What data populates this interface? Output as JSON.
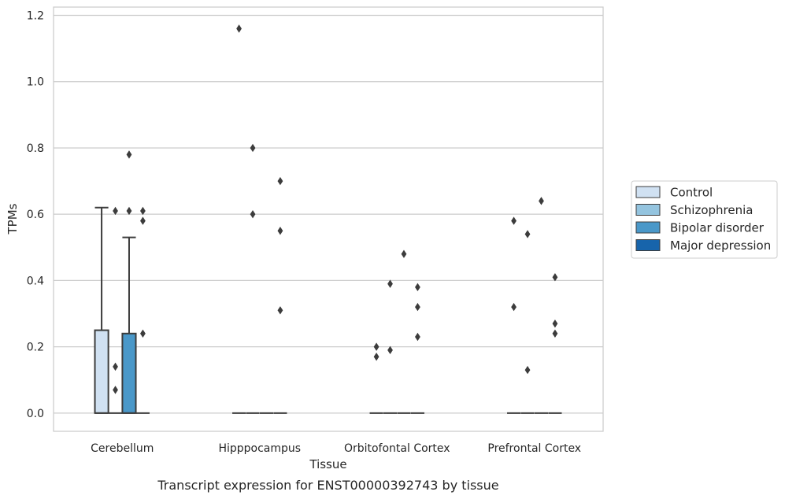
{
  "chart_data": {
    "type": "box",
    "title": "",
    "caption": "Transcript expression for ENST00000392743 by tissue",
    "xlabel": "Tissue",
    "ylabel": "TPMs",
    "ylim": [
      -0.055,
      1.225
    ],
    "yticks": [
      0.0,
      0.2,
      0.4,
      0.6,
      0.8,
      1.0,
      1.2
    ],
    "ytick_labels": [
      "0.0",
      "0.2",
      "0.4",
      "0.6",
      "0.8",
      "1.0",
      "1.2"
    ],
    "grid": "horizontal",
    "legend_position": "right",
    "categories": [
      "Cerebellum",
      "Hipppocampus",
      "Orbitofontal Cortex",
      "Prefrontal Cortex"
    ],
    "series": [
      {
        "name": "Control",
        "color": "#d0e1f2",
        "boxes": [
          {
            "q1": 0.0,
            "median": 0.0,
            "q3": 0.25,
            "whisker_low": 0.0,
            "whisker_high": 0.62,
            "outliers": []
          },
          {
            "q1": 0.0,
            "median": 0.0,
            "q3": 0.0,
            "whisker_low": 0.0,
            "whisker_high": 0.0,
            "outliers": [
              1.16
            ]
          },
          {
            "q1": 0.0,
            "median": 0.0,
            "q3": 0.0,
            "whisker_low": 0.0,
            "whisker_high": 0.0,
            "outliers": [
              0.2,
              0.17
            ]
          },
          {
            "q1": 0.0,
            "median": 0.0,
            "q3": 0.0,
            "whisker_low": 0.0,
            "whisker_high": 0.0,
            "outliers": [
              0.58,
              0.32
            ]
          }
        ]
      },
      {
        "name": "Schizophrenia",
        "color": "#94c4df",
        "boxes": [
          {
            "q1": 0.0,
            "median": 0.0,
            "q3": 0.0,
            "whisker_low": 0.0,
            "whisker_high": 0.0,
            "outliers": [
              0.61,
              0.14,
              0.07
            ]
          },
          {
            "q1": 0.0,
            "median": 0.0,
            "q3": 0.0,
            "whisker_low": 0.0,
            "whisker_high": 0.0,
            "outliers": [
              0.8,
              0.6
            ]
          },
          {
            "q1": 0.0,
            "median": 0.0,
            "q3": 0.0,
            "whisker_low": 0.0,
            "whisker_high": 0.0,
            "outliers": [
              0.39,
              0.19
            ]
          },
          {
            "q1": 0.0,
            "median": 0.0,
            "q3": 0.0,
            "whisker_low": 0.0,
            "whisker_high": 0.0,
            "outliers": [
              0.54,
              0.13
            ]
          }
        ]
      },
      {
        "name": "Bipolar disorder",
        "color": "#4a98c9",
        "boxes": [
          {
            "q1": 0.0,
            "median": 0.0,
            "q3": 0.24,
            "whisker_low": 0.0,
            "whisker_high": 0.53,
            "outliers": [
              0.78,
              0.61
            ]
          },
          {
            "q1": 0.0,
            "median": 0.0,
            "q3": 0.0,
            "whisker_low": 0.0,
            "whisker_high": 0.0,
            "outliers": []
          },
          {
            "q1": 0.0,
            "median": 0.0,
            "q3": 0.0,
            "whisker_low": 0.0,
            "whisker_high": 0.0,
            "outliers": [
              0.48
            ]
          },
          {
            "q1": 0.0,
            "median": 0.0,
            "q3": 0.0,
            "whisker_low": 0.0,
            "whisker_high": 0.0,
            "outliers": [
              0.64
            ]
          }
        ]
      },
      {
        "name": "Major depression",
        "color": "#1764ab",
        "boxes": [
          {
            "q1": 0.0,
            "median": 0.0,
            "q3": 0.0,
            "whisker_low": 0.0,
            "whisker_high": 0.0,
            "outliers": [
              0.61,
              0.58,
              0.24
            ]
          },
          {
            "q1": 0.0,
            "median": 0.0,
            "q3": 0.0,
            "whisker_low": 0.0,
            "whisker_high": 0.0,
            "outliers": [
              0.7,
              0.55,
              0.31
            ]
          },
          {
            "q1": 0.0,
            "median": 0.0,
            "q3": 0.0,
            "whisker_low": 0.0,
            "whisker_high": 0.0,
            "outliers": [
              0.38,
              0.32,
              0.23
            ]
          },
          {
            "q1": 0.0,
            "median": 0.0,
            "q3": 0.0,
            "whisker_low": 0.0,
            "whisker_high": 0.0,
            "outliers": [
              0.41,
              0.27,
              0.24
            ]
          }
        ]
      }
    ]
  }
}
